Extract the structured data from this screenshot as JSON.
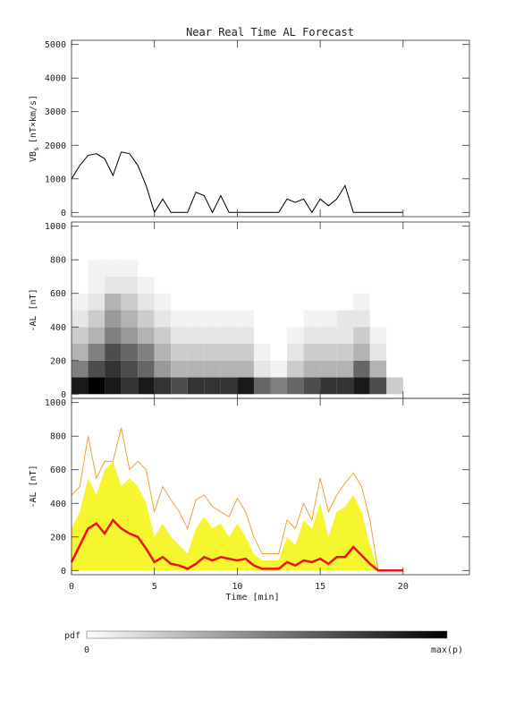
{
  "chart_data": [
    {
      "type": "line",
      "title": "Near Real Time AL Forecast",
      "ylabel": {
        "main": "VB",
        "sub": "s",
        "unit": "[nT×km/s]"
      },
      "xlim": [
        0,
        24
      ],
      "xticks": [
        0,
        5,
        10,
        15,
        20
      ],
      "ylim": [
        -125,
        5125
      ],
      "yticks": [
        0,
        1000,
        2000,
        3000,
        4000,
        5000
      ],
      "x": [
        0,
        0.5,
        1,
        1.5,
        2,
        2.5,
        3,
        3.5,
        4,
        4.5,
        5,
        5.5,
        6,
        6.5,
        7,
        7.5,
        8,
        8.5,
        9,
        9.5,
        10,
        10.5,
        11,
        11.5,
        12,
        12.5,
        13,
        13.5,
        14,
        14.5,
        15,
        15.5,
        16,
        16.5,
        17,
        17.5,
        18,
        18.5,
        19,
        19.5,
        20
      ],
      "series": [
        {
          "color": "#000000",
          "values": [
            1000,
            1400,
            1700,
            1750,
            1600,
            1100,
            1800,
            1750,
            1400,
            800,
            0,
            400,
            0,
            0,
            0,
            600,
            500,
            0,
            500,
            0,
            0,
            0,
            0,
            0,
            0,
            0,
            400,
            300,
            400,
            0,
            400,
            200,
            400,
            800,
            0,
            0,
            0,
            0,
            0,
            0,
            0
          ]
        }
      ]
    },
    {
      "type": "heatmap",
      "ylabel": "-AL [nT]",
      "xlim": [
        0,
        24
      ],
      "xticks": [
        0,
        5,
        10,
        15,
        20
      ],
      "ylim": [
        -25,
        1025
      ],
      "yticks": [
        0,
        200,
        400,
        600,
        800,
        1000
      ],
      "xbins": [
        0,
        1,
        2,
        3,
        4,
        5,
        6,
        7,
        8,
        9,
        10,
        11,
        12,
        13,
        14,
        15,
        16,
        17,
        18,
        19,
        20
      ],
      "ybins": [
        0,
        100,
        200,
        300,
        400,
        500,
        600,
        700,
        800
      ],
      "z": [
        [
          0.9,
          1,
          0.9,
          0.8,
          0.9,
          0.8,
          0.7,
          0.8,
          0.8,
          0.8,
          0.9,
          0.6,
          0.5,
          0.6,
          0.7,
          0.8,
          0.8,
          0.9,
          0.7,
          0.2
        ],
        [
          0.5,
          0.7,
          0.8,
          0.7,
          0.6,
          0.4,
          0.3,
          0.3,
          0.3,
          0.3,
          0.3,
          0.1,
          0.05,
          0.2,
          0.3,
          0.3,
          0.3,
          0.6,
          0.3,
          0
        ],
        [
          0.3,
          0.5,
          0.7,
          0.6,
          0.5,
          0.3,
          0.2,
          0.2,
          0.2,
          0.2,
          0.2,
          0.05,
          0,
          0.1,
          0.2,
          0.2,
          0.2,
          0.3,
          0.1,
          0
        ],
        [
          0.2,
          0.3,
          0.5,
          0.4,
          0.3,
          0.2,
          0.1,
          0.1,
          0.1,
          0.1,
          0.1,
          0,
          0,
          0.05,
          0.1,
          0.1,
          0.1,
          0.2,
          0.05,
          0
        ],
        [
          0.1,
          0.2,
          0.4,
          0.3,
          0.2,
          0.1,
          0.05,
          0.05,
          0.05,
          0.05,
          0.05,
          0,
          0,
          0,
          0.05,
          0.05,
          0.1,
          0.1,
          0,
          0
        ],
        [
          0.05,
          0.1,
          0.3,
          0.2,
          0.1,
          0.05,
          0,
          0,
          0,
          0,
          0,
          0,
          0,
          0,
          0,
          0,
          0,
          0.05,
          0,
          0
        ],
        [
          0,
          0.05,
          0.1,
          0.1,
          0.05,
          0,
          0,
          0,
          0,
          0,
          0,
          0,
          0,
          0,
          0,
          0,
          0,
          0,
          0,
          0
        ],
        [
          0,
          0.05,
          0.05,
          0.05,
          0,
          0,
          0,
          0,
          0,
          0,
          0,
          0,
          0,
          0,
          0,
          0,
          0,
          0,
          0,
          0
        ]
      ],
      "colormap": [
        "#ffffff",
        "#000000"
      ],
      "colorbar_label": "pdf",
      "colorbar_min_label": "0",
      "colorbar_max_label": "max(p)"
    },
    {
      "type": "bands",
      "ylabel": "-AL [nT]",
      "xlabel": "Time [min]",
      "xlim": [
        0,
        24
      ],
      "xticks": [
        0,
        5,
        10,
        15,
        20
      ],
      "ylim": [
        -25,
        1025
      ],
      "yticks": [
        0,
        200,
        400,
        600,
        800,
        1000
      ],
      "x": [
        0,
        0.5,
        1,
        1.5,
        2,
        2.5,
        3,
        3.5,
        4,
        4.5,
        5,
        5.5,
        6,
        6.5,
        7,
        7.5,
        8,
        8.5,
        9,
        9.5,
        10,
        10.5,
        11,
        11.5,
        12,
        12.5,
        13,
        13.5,
        14,
        14.5,
        15,
        15.5,
        16,
        16.5,
        17,
        17.5,
        18,
        18.5,
        19,
        19.5,
        20
      ],
      "series": [
        {
          "style": "area",
          "color": "#f5f530",
          "values": [
            250,
            350,
            550,
            450,
            600,
            650,
            500,
            550,
            500,
            400,
            200,
            280,
            200,
            150,
            100,
            250,
            320,
            250,
            280,
            200,
            280,
            200,
            100,
            60,
            60,
            60,
            200,
            150,
            300,
            250,
            400,
            200,
            350,
            380,
            450,
            350,
            150,
            0,
            0,
            0,
            0
          ]
        },
        {
          "style": "line",
          "color": "#f0a040",
          "values": [
            450,
            500,
            800,
            550,
            650,
            650,
            850,
            600,
            650,
            600,
            350,
            500,
            420,
            350,
            250,
            420,
            450,
            380,
            350,
            320,
            430,
            350,
            200,
            100,
            100,
            100,
            300,
            250,
            400,
            300,
            550,
            350,
            450,
            520,
            580,
            500,
            300,
            0,
            0,
            0,
            0
          ]
        },
        {
          "style": "line",
          "color": "#ee1111",
          "width": 2.5,
          "values": [
            50,
            150,
            250,
            280,
            220,
            300,
            250,
            220,
            200,
            130,
            50,
            80,
            40,
            30,
            10,
            40,
            80,
            60,
            80,
            70,
            60,
            70,
            30,
            10,
            10,
            10,
            50,
            30,
            60,
            50,
            70,
            40,
            80,
            80,
            140,
            90,
            40,
            0,
            0,
            0,
            0
          ]
        }
      ]
    }
  ]
}
